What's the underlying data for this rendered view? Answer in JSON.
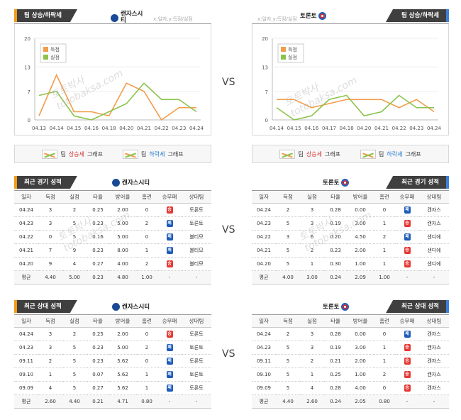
{
  "vs": "VS",
  "watermark": {
    "ko": "토토박사",
    "en": "totobaksa.com"
  },
  "charts": {
    "left": {
      "title": "팀 상승/하락세",
      "team": "캔자스시티",
      "hint": "x:일자,y:득점/실점",
      "legend": [
        "득점",
        "실점"
      ],
      "bottom_legend": [
        {
          "prefix": "팀 ",
          "word": "상승세",
          "suffix": " 그래프"
        },
        {
          "prefix": "팀 ",
          "word": "하락세",
          "suffix": " 그래프"
        }
      ]
    },
    "right": {
      "title": "팀 상승/하락세",
      "team": "토론토",
      "hint": "x:일자,y:득점/실점",
      "legend": [
        "득점",
        "실점"
      ],
      "bottom_legend": [
        {
          "prefix": "팀 ",
          "word": "상승세",
          "suffix": " 그래프"
        },
        {
          "prefix": "팀 ",
          "word": "하락세",
          "suffix": " 그래프"
        }
      ]
    }
  },
  "chart_data": [
    {
      "type": "line",
      "x": [
        "04.13",
        "04.14",
        "04.15",
        "04.16",
        "04.18",
        "04.20",
        "04.21",
        "04.22",
        "04.23",
        "04.24"
      ],
      "yticks": [
        0,
        7,
        13,
        20
      ],
      "ylim": [
        0,
        20
      ],
      "series": [
        {
          "name": "득점",
          "color": "#f39c4a",
          "values": [
            1,
            11,
            2,
            2,
            1,
            9,
            7,
            0,
            3,
            3
          ]
        },
        {
          "name": "실점",
          "color": "#8bc34a",
          "values": [
            6,
            7,
            1,
            0,
            2,
            4,
            9,
            5,
            5,
            2
          ]
        }
      ]
    },
    {
      "type": "line",
      "x": [
        "04.14",
        "04.15",
        "04.16",
        "04.17",
        "04.18",
        "04.20",
        "04.21",
        "04.22",
        "04.23",
        "04.24"
      ],
      "yticks": [
        0,
        7,
        13,
        20
      ],
      "ylim": [
        0,
        20
      ],
      "series": [
        {
          "name": "득점",
          "color": "#f39c4a",
          "values": [
            5,
            5,
            3,
            4,
            5,
            5,
            5,
            3,
            5,
            2
          ]
        },
        {
          "name": "실점",
          "color": "#8bc34a",
          "values": [
            3,
            0,
            1,
            5,
            6,
            1,
            2,
            6,
            3,
            3
          ]
        }
      ]
    }
  ],
  "tables": [
    {
      "title": "최근 경기 성적",
      "team": "캔자스시티",
      "side": "left",
      "headers": [
        "일자",
        "득점",
        "실점",
        "타율",
        "방어율",
        "홈런",
        "승무패",
        "상대팀"
      ],
      "rows": [
        [
          "04.24",
          "3",
          "2",
          "0.25",
          "2.00",
          "0",
          "승",
          "토론토"
        ],
        [
          "04.23",
          "3",
          "5",
          "0.23",
          "5.00",
          "2",
          "패",
          "토론토"
        ],
        [
          "04.22",
          "0",
          "5",
          "0.16",
          "5.00",
          "0",
          "패",
          "볼티모"
        ],
        [
          "04.21",
          "7",
          "9",
          "0.23",
          "8.00",
          "1",
          "패",
          "볼티모"
        ],
        [
          "04.20",
          "9",
          "4",
          "0.27",
          "4.00",
          "2",
          "승",
          "볼티모"
        ]
      ],
      "avg": [
        "평균",
        "4.40",
        "5.00",
        "0.23",
        "4.80",
        "1.00",
        "-",
        "-"
      ]
    },
    {
      "title": "최근 경기 성적",
      "team": "토론토",
      "side": "right",
      "headers": [
        "일자",
        "득점",
        "실점",
        "타율",
        "방어율",
        "홈런",
        "승무패",
        "상대팀"
      ],
      "rows": [
        [
          "04.24",
          "2",
          "3",
          "0.28",
          "0.00",
          "0",
          "패",
          "캔자스"
        ],
        [
          "04.23",
          "5",
          "3",
          "0.19",
          "3.00",
          "1",
          "승",
          "캔자스"
        ],
        [
          "04.22",
          "3",
          "6",
          "0.20",
          "4.50",
          "2",
          "패",
          "샌디에"
        ],
        [
          "04.21",
          "5",
          "2",
          "0.23",
          "2.00",
          "1",
          "승",
          "샌디에"
        ],
        [
          "04.20",
          "5",
          "1",
          "0.30",
          "1.00",
          "1",
          "승",
          "샌디에"
        ]
      ],
      "avg": [
        "평균",
        "4.00",
        "3.00",
        "0.24",
        "2.09",
        "1.00",
        "-",
        "-"
      ]
    },
    {
      "title": "최근 상대 성적",
      "team": "캔자스시티",
      "side": "left",
      "headers": [
        "일자",
        "득점",
        "실점",
        "타율",
        "방어율",
        "홈런",
        "승무패",
        "상대팀"
      ],
      "rows": [
        [
          "04.24",
          "3",
          "2",
          "0.25",
          "2.00",
          "0",
          "승",
          "토론토"
        ],
        [
          "04.23",
          "3",
          "5",
          "0.23",
          "5.00",
          "2",
          "패",
          "토론토"
        ],
        [
          "09.11",
          "2",
          "5",
          "0.23",
          "5.62",
          "0",
          "패",
          "토론토"
        ],
        [
          "09.10",
          "1",
          "5",
          "0.07",
          "5.62",
          "1",
          "패",
          "토론토"
        ],
        [
          "09.09",
          "4",
          "5",
          "0.27",
          "5.62",
          "1",
          "패",
          "토론토"
        ]
      ],
      "avg": [
        "평균",
        "2.60",
        "4.40",
        "0.21",
        "4.71",
        "0.80",
        "-",
        "-"
      ]
    },
    {
      "title": "최근 상대 성적",
      "team": "토론토",
      "side": "right",
      "headers": [
        "일자",
        "득점",
        "실점",
        "타율",
        "방어율",
        "홈런",
        "승무패",
        "상대팀"
      ],
      "rows": [
        [
          "04.24",
          "2",
          "3",
          "0.28",
          "0.00",
          "0",
          "패",
          "캔자스"
        ],
        [
          "04.23",
          "5",
          "3",
          "0.19",
          "3.00",
          "1",
          "승",
          "캔자스"
        ],
        [
          "09.11",
          "5",
          "2",
          "0.21",
          "2.00",
          "1",
          "승",
          "캔자스"
        ],
        [
          "09.10",
          "5",
          "1",
          "0.25",
          "1.00",
          "2",
          "승",
          "캔자스"
        ],
        [
          "09.09",
          "5",
          "4",
          "0.28",
          "4.00",
          "0",
          "승",
          "캔자스"
        ]
      ],
      "avg": [
        "평균",
        "4.40",
        "2.60",
        "0.24",
        "2.05",
        "0.80",
        "-",
        "-"
      ]
    }
  ],
  "colors": {
    "score": "#f39c4a",
    "allowed": "#8bc34a",
    "win": "#e53935",
    "loss": "#1e5bb8",
    "accent_left": "#f39c12",
    "accent_right": "#3d7fd9"
  }
}
